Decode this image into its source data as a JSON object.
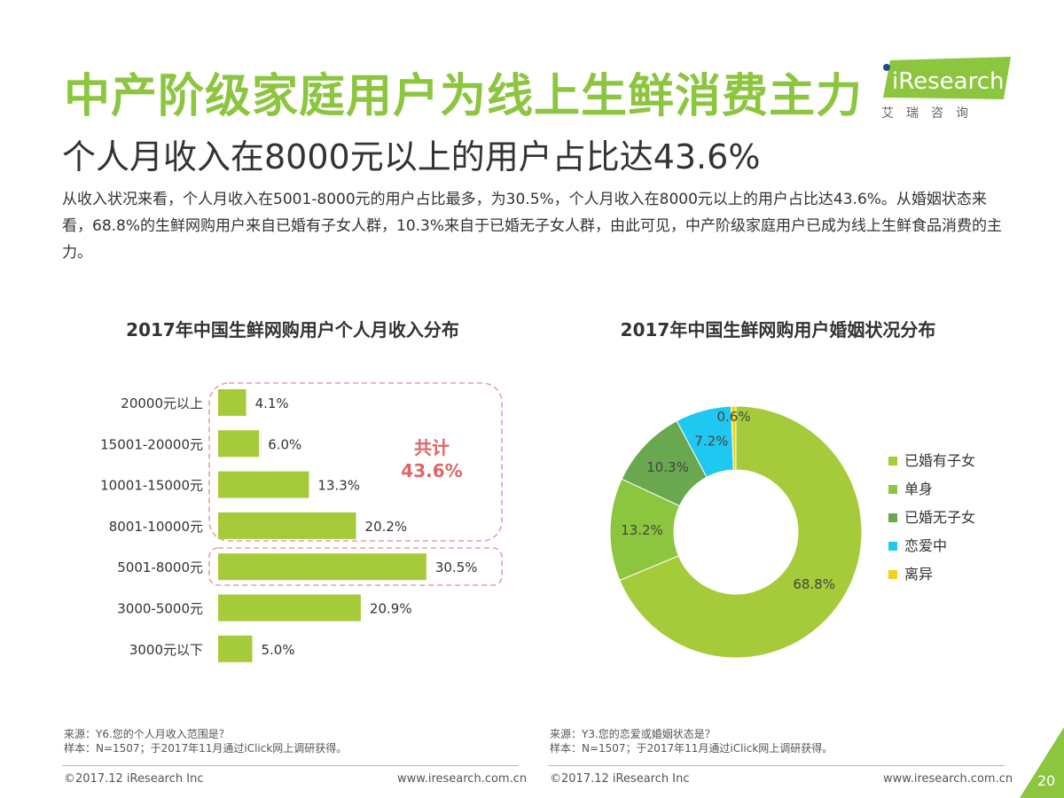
{
  "header": {
    "title": "中产阶级家庭用户为线上生鲜消费主力",
    "subtitle": "个人月收入在8000元以上的用户占比达43.6%",
    "description": "从收入状况来看，个人月收入在5001-8000元的用户占比最多，为30.5%，个人月收入在8000元以上的用户占比达43.6%。从婚姻状态来看，68.8%的生鲜网购用户来自已婚有子女人群，10.3%来自于已婚无子女人群，由此可见，中产阶级家庭用户已成为线上生鲜食品消费的主力。"
  },
  "logo": {
    "name": "iResearch",
    "subtitle": "艾瑞咨询"
  },
  "annotations": {
    "total_label": "共计",
    "total_value": "43.6%"
  },
  "footnotes": {
    "left_source": "来源：Y6.您的个人月收入范围是？",
    "left_sample": "样本：N=1507；于2017年11月通过iClick网上调研获得。",
    "right_source": "来源：Y3.您的恋爱或婚姻状态是？",
    "right_sample": "样本：N=1507；于2017年11月通过iClick网上调研获得。"
  },
  "footer": {
    "copyright_left": "©2017.12 iResearch Inc",
    "url_left": "www.iresearch.com.cn",
    "copyright_right": "©2017.12 iResearch Inc",
    "url_right": "www.iresearch.com.cn",
    "page_number": "20"
  },
  "colors": {
    "accent_green": "#8cc63f",
    "bar_green": "#a6cb3a",
    "highlight_pink": "#e8a0a0",
    "total_red": "#e06666"
  },
  "chart_data": [
    {
      "type": "bar",
      "orientation": "horizontal",
      "title": "2017年中国生鲜网购用户个人月收入分布",
      "categories": [
        "20000元以上",
        "15001-20000元",
        "10001-15000元",
        "8001-10000元",
        "5001-8000元",
        "3000-5000元",
        "3000元以下"
      ],
      "values": [
        4.1,
        6.0,
        13.3,
        20.2,
        30.5,
        20.9,
        5.0
      ],
      "labels": [
        "4.1%",
        "6.0%",
        "13.3%",
        "20.2%",
        "30.5%",
        "20.9%",
        "5.0%"
      ],
      "unit": "%",
      "color": "#a6cb3a",
      "grid": false,
      "highlighted_groups": [
        {
          "categories": [
            "20000元以上",
            "15001-20000元",
            "10001-15000元",
            "8001-10000元"
          ],
          "label": "共计 43.6%"
        },
        {
          "categories": [
            "5001-8000元"
          ]
        }
      ]
    },
    {
      "type": "pie",
      "variant": "donut",
      "title": "2017年中国生鲜网购用户婚姻状况分布",
      "categories": [
        "已婚有子女",
        "单身",
        "已婚无子女",
        "恋爱中",
        "离异"
      ],
      "values": [
        68.8,
        13.2,
        10.3,
        7.2,
        0.6
      ],
      "labels": [
        "68.8%",
        "13.2%",
        "10.3%",
        "7.2%",
        "0.6%"
      ],
      "colors": [
        "#a6cb3a",
        "#8cc63f",
        "#6aa84f",
        "#1fc8f0",
        "#f2d31b"
      ],
      "legend": "right"
    }
  ]
}
